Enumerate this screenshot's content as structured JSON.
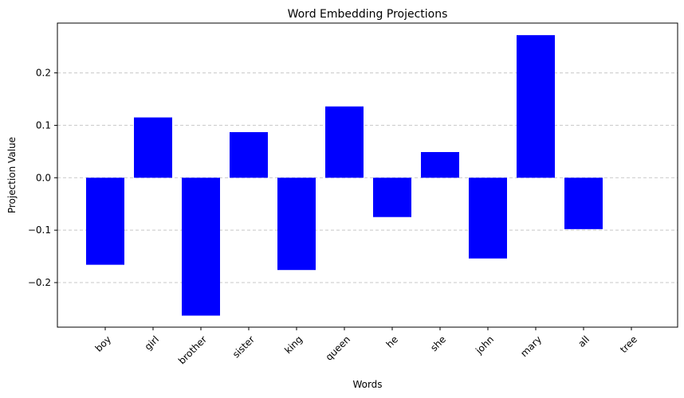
{
  "chart_data": {
    "type": "bar",
    "title": "Word Embedding Projections",
    "xlabel": "Words",
    "ylabel": "Projection Value",
    "categories": [
      "boy",
      "girl",
      "brother",
      "sister",
      "king",
      "queen",
      "he",
      "she",
      "john",
      "mary",
      "all",
      "tree"
    ],
    "values": [
      -0.166,
      0.115,
      -0.263,
      0.087,
      -0.176,
      0.136,
      -0.075,
      0.049,
      -0.154,
      0.272,
      -0.098,
      0.0
    ],
    "ylim": [
      -0.285,
      0.295
    ],
    "yticks": [
      -0.2,
      -0.1,
      0.0,
      0.1,
      0.2
    ],
    "ytick_labels": [
      "−0.2",
      "−0.1",
      "0.0",
      "0.1",
      "0.2"
    ],
    "grid": "y-dashed",
    "bar_color": "#0000ff"
  }
}
